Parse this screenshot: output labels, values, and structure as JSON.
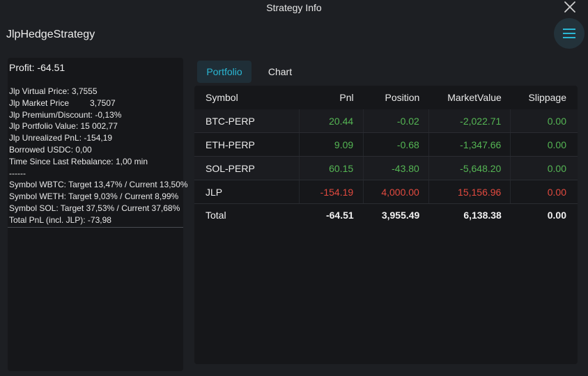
{
  "window": {
    "title": "Strategy Info"
  },
  "strategy": {
    "name": "JlpHedgeStrategy"
  },
  "info": {
    "profit": "Profit: -64.51",
    "lines": [
      "Jlp Virtual Price: 3,7555",
      "Jlp Market Price",
      "Jlp Premium/Discount: -0,13%",
      "Jlp Portfolio Value: 15 002,77",
      "Jlp Unrealized PnL: -154,19",
      "Borrowed USDC: 0,00",
      "Time Since Last Rebalance: 1,00 min",
      "------",
      "Symbol WBTC: Target 13,47% / Current 13,50%",
      "Symbol WETH: Target 9,03% / Current 8,99%",
      "Symbol SOL: Target 37,53% / Current 37,68%",
      "Total PnL (incl. JLP): -73,98"
    ],
    "market_price_value": "3,7507"
  },
  "tabs": [
    {
      "label": "Portfolio",
      "active": true
    },
    {
      "label": "Chart",
      "active": false
    }
  ],
  "table": {
    "columns": [
      "Symbol",
      "Pnl",
      "Position",
      "MarketValue",
      "Slippage"
    ],
    "rows": [
      {
        "symbol": "BTC-PERP",
        "pnl": "20.44",
        "position": "-0.02",
        "market_value": "-2,022.71",
        "slippage": "0.00",
        "tone": "pos"
      },
      {
        "symbol": "ETH-PERP",
        "pnl": "9.09",
        "position": "-0.68",
        "market_value": "-1,347.66",
        "slippage": "0.00",
        "tone": "pos"
      },
      {
        "symbol": "SOL-PERP",
        "pnl": "60.15",
        "position": "-43.80",
        "market_value": "-5,648.20",
        "slippage": "0.00",
        "tone": "pos"
      },
      {
        "symbol": "JLP",
        "pnl": "-154.19",
        "position": "4,000.00",
        "market_value": "15,156.96",
        "slippage": "0.00",
        "tone": "neg"
      }
    ],
    "total": {
      "label": "Total",
      "pnl": "-64.51",
      "position": "3,955.49",
      "market_value": "6,138.38",
      "slippage": "0.00"
    }
  },
  "icons": {
    "close": "close-icon",
    "menu": "hamburger-menu-icon"
  },
  "colors": {
    "accent": "#2bb7d4",
    "positive": "#55b654",
    "negative": "#e24a3f"
  }
}
